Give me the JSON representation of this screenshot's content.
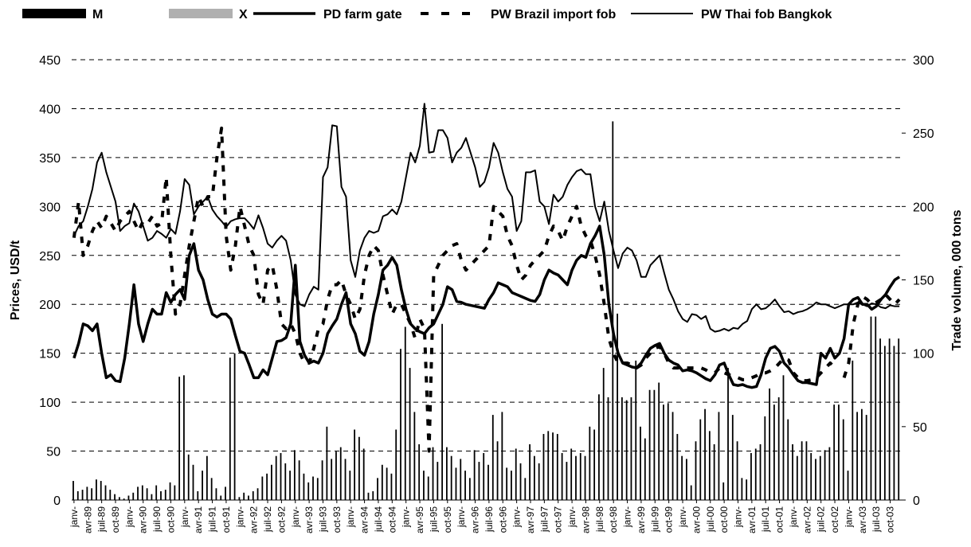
{
  "chart_data": {
    "type": "combo",
    "ylabel": "Prices, USD/t",
    "y2label": "Trade volume, 000 tons",
    "ylim": [
      0,
      450
    ],
    "yticks": [
      0,
      50,
      100,
      150,
      200,
      250,
      300,
      350,
      400,
      450
    ],
    "y2lim": [
      0,
      300
    ],
    "y2ticks": [
      0,
      50,
      100,
      150,
      200,
      250,
      300
    ],
    "grid": true,
    "categories": [
      "janv-",
      null,
      null,
      "avr-89",
      null,
      null,
      "juil-89",
      null,
      null,
      "oct-89",
      null,
      null,
      "janv-",
      null,
      null,
      "avr-90",
      null,
      null,
      "juil-90",
      null,
      null,
      "oct-90",
      null,
      null,
      "janv-",
      null,
      null,
      "avr-91",
      null,
      null,
      "juil-91",
      null,
      null,
      "oct-91",
      null,
      null,
      "janv-",
      null,
      null,
      "avr-92",
      null,
      null,
      "juil-92",
      null,
      null,
      "oct-92",
      null,
      null,
      "janv-",
      null,
      null,
      "avr-93",
      null,
      null,
      "juil-93",
      null,
      null,
      "oct-93",
      null,
      null,
      "janv-",
      null,
      null,
      "avr-94",
      null,
      null,
      "juil-94",
      null,
      null,
      "oct-94",
      null,
      null,
      "janv-",
      null,
      null,
      "avr-95",
      null,
      null,
      "juil-95",
      null,
      null,
      "oct-95",
      null,
      null,
      "janv-",
      null,
      null,
      "avr-96",
      null,
      null,
      "juil-96",
      null,
      null,
      "oct-96",
      null,
      null,
      "janv-",
      null,
      null,
      "avr-97",
      null,
      null,
      "juil-97",
      null,
      null,
      "oct-97",
      null,
      null,
      "janv-",
      null,
      null,
      "avr-98",
      null,
      null,
      "juil-98",
      null,
      null,
      "oct-98",
      null,
      null,
      "janv-",
      null,
      null,
      "avr-99",
      null,
      null,
      "juil-99",
      null,
      null,
      "oct-99",
      null,
      null,
      "janv-",
      null,
      null,
      "avr-00",
      null,
      null,
      "juil-00",
      null,
      null,
      "oct-00",
      null,
      null,
      "janv-",
      null,
      null,
      "avr-01",
      null,
      null,
      "juil-01",
      null,
      null,
      "oct-01",
      null,
      null,
      "janv-",
      null,
      null,
      "avr-02",
      null,
      null,
      "juil-02",
      null,
      null,
      "oct-02",
      null,
      null,
      "janv-",
      null,
      null,
      "avr-03",
      null,
      null,
      "juil-03",
      null,
      null,
      "oct-03",
      null,
      null
    ],
    "series": [
      {
        "name": "M",
        "type": "bar",
        "axis": "y2",
        "color": "#000000",
        "values": [
          13,
          6,
          7,
          9,
          8,
          14,
          13,
          10,
          7,
          4,
          2,
          1,
          3,
          5,
          9,
          10,
          8,
          4,
          10,
          6,
          7,
          12,
          10,
          84,
          85,
          31,
          24,
          6,
          20,
          30,
          15,
          8,
          3,
          9,
          97,
          100,
          2,
          5,
          3,
          6,
          8,
          16,
          18,
          24,
          30,
          32,
          25,
          20,
          34,
          27,
          18,
          12,
          16,
          15,
          27,
          50,
          28,
          33,
          36,
          28,
          20,
          48,
          43,
          35,
          5,
          6,
          15,
          24,
          22,
          18,
          48,
          103,
          118,
          90,
          60,
          38,
          20,
          16,
          36,
          26,
          120,
          36,
          30,
          22,
          28,
          20,
          15,
          34,
          26,
          32,
          24,
          58,
          40,
          60,
          22,
          20,
          35,
          25,
          15,
          38,
          30,
          25,
          45,
          47,
          46,
          45,
          32,
          26,
          35,
          30,
          32,
          30,
          50,
          48,
          72,
          90,
          70,
          258,
          127,
          70,
          68,
          70,
          95,
          50,
          42,
          75,
          75,
          80,
          65,
          66,
          60,
          45,
          30,
          28,
          10,
          40,
          55,
          62,
          47,
          38,
          60,
          12,
          90,
          58,
          40,
          15,
          14,
          32,
          35,
          38,
          57,
          76,
          65,
          70,
          85,
          55,
          38,
          30,
          40,
          40,
          32,
          28,
          30,
          34,
          36,
          65,
          65,
          55,
          20,
          95,
          60,
          62,
          58,
          125,
          125,
          110,
          105,
          110,
          105,
          110
        ]
      },
      {
        "name": "X",
        "type": "bar",
        "axis": "y2",
        "color": "#b0b0b0",
        "values": [
          0,
          0,
          0,
          0,
          0,
          0,
          0,
          0,
          0,
          0,
          0,
          0,
          0,
          0,
          0,
          0,
          0,
          0,
          0,
          0,
          0,
          0,
          0,
          0,
          0,
          0,
          0,
          0,
          0,
          0,
          0,
          0,
          0,
          0,
          0,
          0,
          0,
          0,
          0,
          0,
          0,
          0,
          0,
          0,
          0,
          0,
          0,
          0,
          0,
          0,
          0,
          0,
          0,
          0,
          0,
          0,
          0,
          0,
          0,
          0,
          0,
          0,
          0,
          0,
          0,
          0,
          0,
          0,
          0,
          0,
          0,
          0,
          0,
          0,
          0,
          0,
          0,
          0,
          0,
          0,
          0,
          0,
          0,
          0,
          0,
          0,
          0,
          0,
          0,
          0,
          0,
          0,
          0,
          0,
          0,
          0,
          0,
          0,
          0,
          0,
          0,
          0,
          0,
          0,
          0,
          0,
          0,
          0,
          0,
          0,
          0,
          0,
          0,
          0,
          0,
          0,
          0,
          0,
          0,
          0,
          0,
          0,
          0,
          0,
          0,
          0,
          0,
          0,
          0,
          0,
          0,
          0,
          0,
          0,
          0,
          0,
          0,
          0,
          0,
          0,
          0,
          0,
          0,
          0,
          0,
          0,
          0,
          0,
          0,
          0,
          0,
          0,
          0,
          0,
          0,
          0,
          0,
          0,
          0,
          0,
          0,
          0,
          0,
          0,
          0,
          0,
          0,
          0,
          0,
          0,
          0,
          0,
          0,
          0,
          0,
          0,
          0,
          0,
          0,
          0
        ]
      },
      {
        "name": "PD farm gate",
        "type": "line",
        "color": "#000000",
        "width": 3.5,
        "values": [
          145,
          160,
          180,
          178,
          173,
          180,
          150,
          125,
          128,
          122,
          121,
          145,
          180,
          220,
          180,
          162,
          180,
          195,
          190,
          190,
          212,
          202,
          210,
          215,
          205,
          250,
          262,
          235,
          225,
          205,
          190,
          187,
          190,
          190,
          185,
          168,
          152,
          150,
          138,
          125,
          125,
          133,
          128,
          145,
          162,
          163,
          166,
          180,
          240,
          162,
          148,
          140,
          142,
          140,
          150,
          170,
          178,
          185,
          200,
          212,
          180,
          170,
          152,
          148,
          162,
          190,
          210,
          235,
          240,
          248,
          240,
          215,
          195,
          180,
          175,
          172,
          170,
          176,
          180,
          190,
          200,
          218,
          215,
          203,
          202,
          200,
          199,
          198,
          197,
          196,
          205,
          212,
          222,
          220,
          218,
          212,
          210,
          208,
          206,
          204,
          203,
          210,
          225,
          235,
          232,
          230,
          225,
          220,
          235,
          245,
          250,
          248,
          262,
          270,
          280,
          250,
          200,
          170,
          150,
          140,
          138,
          136,
          135,
          140,
          148,
          155,
          158,
          160,
          150,
          143,
          140,
          138,
          132,
          133,
          132,
          130,
          127,
          124,
          122,
          128,
          138,
          140,
          128,
          118,
          117,
          118,
          116,
          115,
          116,
          128,
          145,
          155,
          157,
          152,
          140,
          135,
          128,
          122,
          120,
          120,
          119,
          118,
          150,
          145,
          155,
          145,
          150,
          165,
          200,
          205,
          207,
          200,
          200,
          195,
          198,
          205,
          210,
          218,
          225,
          228
        ]
      },
      {
        "name": "PW Brazil import fob",
        "type": "line",
        "color": "#000000",
        "width": 4,
        "dash": "8,10",
        "values": [
          268,
          305,
          250,
          260,
          275,
          285,
          278,
          290,
          283,
          275,
          285,
          290,
          295,
          285,
          275,
          285,
          283,
          290,
          280,
          283,
          330,
          250,
          190,
          200,
          230,
          260,
          285,
          310,
          300,
          310,
          310,
          350,
          380,
          270,
          235,
          260,
          300,
          280,
          260,
          250,
          210,
          200,
          235,
          240,
          215,
          180,
          175,
          180,
          170,
          150,
          140,
          140,
          155,
          175,
          180,
          205,
          220,
          220,
          225,
          210,
          200,
          185,
          195,
          230,
          250,
          260,
          255,
          230,
          210,
          190,
          200,
          200,
          190,
          180,
          165,
          185,
          175,
          50,
          230,
          240,
          250,
          255,
          260,
          262,
          245,
          235,
          240,
          245,
          250,
          255,
          260,
          300,
          295,
          290,
          270,
          260,
          240,
          225,
          230,
          240,
          245,
          250,
          255,
          270,
          280,
          275,
          265,
          280,
          290,
          300,
          280,
          270,
          265,
          250,
          230,
          200,
          165,
          150,
          140,
          140,
          140,
          138,
          135,
          138,
          145,
          150,
          155,
          157,
          150,
          140,
          135,
          135,
          135,
          135,
          135,
          135,
          135,
          133,
          130,
          130,
          135,
          130,
          128,
          127,
          125,
          123,
          123,
          125,
          127,
          130,
          130,
          132,
          135,
          140,
          145,
          143,
          130,
          125,
          122,
          122,
          123,
          125,
          130,
          135,
          140,
          135,
          null,
          125,
          140,
          180,
          200,
          208,
          205,
          200,
          202,
          205,
          210,
          205,
          200,
          205
        ]
      },
      {
        "name": "PW Thai fob Bangkok",
        "type": "line",
        "color": "#000000",
        "width": 2,
        "values": [
          270,
          280,
          285,
          300,
          318,
          345,
          355,
          335,
          320,
          305,
          275,
          280,
          283,
          303,
          295,
          280,
          265,
          268,
          275,
          272,
          268,
          277,
          272,
          295,
          328,
          322,
          292,
          300,
          305,
          310,
          297,
          290,
          285,
          279,
          285,
          287,
          288,
          288,
          283,
          277,
          291,
          278,
          262,
          258,
          265,
          270,
          265,
          245,
          210,
          200,
          198,
          210,
          218,
          215,
          330,
          340,
          383,
          382,
          320,
          310,
          245,
          228,
          255,
          268,
          275,
          273,
          275,
          290,
          292,
          297,
          292,
          305,
          330,
          355,
          345,
          362,
          405,
          355,
          356,
          378,
          378,
          370,
          345,
          355,
          360,
          370,
          355,
          340,
          320,
          325,
          340,
          365,
          355,
          335,
          318,
          310,
          275,
          285,
          335,
          335,
          337,
          305,
          300,
          282,
          312,
          305,
          310,
          322,
          330,
          336,
          338,
          333,
          333,
          300,
          285,
          305,
          275,
          255,
          237,
          252,
          258,
          255,
          245,
          228,
          228,
          240,
          245,
          250,
          232,
          215,
          205,
          193,
          185,
          182,
          190,
          189,
          185,
          188,
          175,
          172,
          173,
          175,
          173,
          176,
          175,
          180,
          183,
          195,
          200,
          195,
          196,
          200,
          205,
          198,
          192,
          193,
          190,
          192,
          193,
          195,
          198,
          202,
          200,
          200,
          198,
          196,
          198,
          200,
          200,
          200,
          202,
          200,
          198,
          201,
          200,
          197,
          196,
          199,
          198,
          198
        ]
      }
    ]
  }
}
